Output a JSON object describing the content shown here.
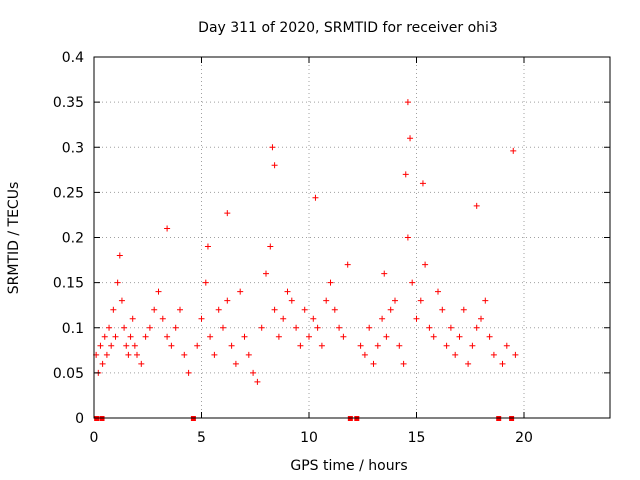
{
  "chart_data": {
    "type": "scatter",
    "title": "Day 311 of 2020, SRMTID for receiver ohi3",
    "xlabel": "GPS time / hours",
    "ylabel": "SRMTID / TECUs",
    "xlim": [
      0,
      24
    ],
    "ylim": [
      0,
      0.4
    ],
    "x_ticks": [
      0,
      5,
      10,
      15,
      20
    ],
    "x_tick_labels": [
      "0",
      "5",
      "10",
      "15",
      "20"
    ],
    "y_ticks": [
      0,
      0.05,
      0.1,
      0.15,
      0.2,
      0.25,
      0.3,
      0.35,
      0.4
    ],
    "y_tick_labels": [
      "0",
      "0.05",
      "0.1",
      "0.15",
      "0.2",
      "0.25",
      "0.3",
      "0.35",
      "0.4"
    ],
    "grid": true,
    "marker": "+",
    "color": "#ff0000",
    "gap_markers_x": [
      0.1,
      0.35,
      4.6,
      11.9,
      12.2,
      18.8,
      19.4
    ],
    "points": {
      "x": [
        0.1,
        0.2,
        0.3,
        0.4,
        0.5,
        0.6,
        0.7,
        0.8,
        0.9,
        1.0,
        1.1,
        1.2,
        1.3,
        1.4,
        1.5,
        1.6,
        1.7,
        1.8,
        1.9,
        2.0,
        2.2,
        2.4,
        2.6,
        2.8,
        3.0,
        3.2,
        3.4,
        3.6,
        3.8,
        4.0,
        4.2,
        4.4,
        4.8,
        5.0,
        5.2,
        5.4,
        5.6,
        5.8,
        6.0,
        6.2,
        6.4,
        6.6,
        6.8,
        7.0,
        7.2,
        7.4,
        7.6,
        7.8,
        8.0,
        8.2,
        8.4,
        8.6,
        8.8,
        9.0,
        9.2,
        9.4,
        9.6,
        9.8,
        10.0,
        10.2,
        10.4,
        10.6,
        10.8,
        11.0,
        11.2,
        11.4,
        11.6,
        12.4,
        12.6,
        12.8,
        13.0,
        13.2,
        13.4,
        13.6,
        13.8,
        14.0,
        14.2,
        14.4,
        14.6,
        14.8,
        15.0,
        15.2,
        15.4,
        15.6,
        15.8,
        16.0,
        16.2,
        16.4,
        16.6,
        16.8,
        17.0,
        17.2,
        17.4,
        17.6,
        17.8,
        18.0,
        18.2,
        18.4,
        18.6,
        19.0,
        19.2,
        19.6,
        8.3,
        8.4,
        14.6,
        14.7,
        14.5,
        19.5,
        6.2,
        10.3,
        17.8,
        15.3,
        3.4,
        5.3,
        11.8,
        13.5
      ],
      "y": [
        0.07,
        0.05,
        0.08,
        0.06,
        0.09,
        0.07,
        0.1,
        0.08,
        0.12,
        0.09,
        0.15,
        0.18,
        0.13,
        0.1,
        0.08,
        0.07,
        0.09,
        0.11,
        0.08,
        0.07,
        0.06,
        0.09,
        0.1,
        0.12,
        0.14,
        0.11,
        0.09,
        0.08,
        0.1,
        0.12,
        0.07,
        0.05,
        0.08,
        0.11,
        0.15,
        0.09,
        0.07,
        0.12,
        0.1,
        0.13,
        0.08,
        0.06,
        0.14,
        0.09,
        0.07,
        0.05,
        0.04,
        0.1,
        0.16,
        0.19,
        0.12,
        0.09,
        0.11,
        0.14,
        0.13,
        0.1,
        0.08,
        0.12,
        0.09,
        0.11,
        0.1,
        0.08,
        0.13,
        0.15,
        0.12,
        0.1,
        0.09,
        0.08,
        0.07,
        0.1,
        0.06,
        0.08,
        0.11,
        0.09,
        0.12,
        0.13,
        0.08,
        0.06,
        0.2,
        0.15,
        0.11,
        0.13,
        0.17,
        0.1,
        0.09,
        0.14,
        0.12,
        0.08,
        0.1,
        0.07,
        0.09,
        0.12,
        0.06,
        0.08,
        0.1,
        0.11,
        0.13,
        0.09,
        0.07,
        0.06,
        0.08,
        0.07,
        0.3,
        0.28,
        0.35,
        0.31,
        0.27,
        0.296,
        0.227,
        0.244,
        0.235,
        0.26,
        0.21,
        0.19,
        0.17,
        0.16
      ]
    }
  }
}
